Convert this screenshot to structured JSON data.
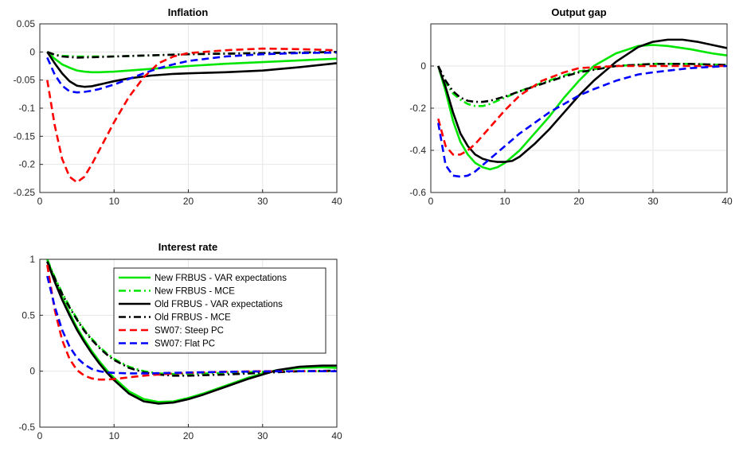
{
  "chart_data": [
    {
      "type": "line",
      "title": "Inflation",
      "xlabel": "",
      "ylabel": "",
      "xlim": [
        0,
        40
      ],
      "ylim": [
        -0.25,
        0.05
      ],
      "xticks": [
        "0",
        "10",
        "20",
        "30",
        "40"
      ],
      "yticks": [
        "0.05",
        "0",
        "-0.05",
        "-0.1",
        "-0.15",
        "-0.2",
        "-0.25"
      ],
      "grid": true,
      "series": [
        {
          "name": "New FRBUS - VAR expectations",
          "x": [
            1,
            2,
            3,
            4,
            5,
            6,
            7,
            8,
            10,
            12,
            15,
            18,
            20,
            25,
            30,
            35,
            40
          ],
          "y": [
            0,
            -0.012,
            -0.022,
            -0.028,
            -0.033,
            -0.035,
            -0.036,
            -0.036,
            -0.035,
            -0.033,
            -0.03,
            -0.027,
            -0.025,
            -0.021,
            -0.018,
            -0.015,
            -0.012
          ]
        },
        {
          "name": "New FRBUS - MCE",
          "x": [
            1,
            2,
            3,
            5,
            8,
            10,
            15,
            20,
            25,
            30,
            35,
            40
          ],
          "y": [
            0,
            -0.005,
            -0.007,
            -0.008,
            -0.008,
            -0.008,
            -0.006,
            -0.004,
            -0.003,
            -0.002,
            -0.001,
            0
          ]
        },
        {
          "name": "Old FRBUS - VAR expectations",
          "x": [
            1,
            2,
            3,
            4,
            5,
            6,
            7,
            8,
            10,
            12,
            15,
            18,
            20,
            25,
            30,
            35,
            40
          ],
          "y": [
            0,
            -0.02,
            -0.038,
            -0.052,
            -0.06,
            -0.062,
            -0.061,
            -0.058,
            -0.052,
            -0.047,
            -0.042,
            -0.039,
            -0.038,
            -0.036,
            -0.033,
            -0.027,
            -0.02
          ]
        },
        {
          "name": "Old FRBUS - MCE",
          "x": [
            1,
            2,
            3,
            5,
            8,
            10,
            15,
            20,
            25,
            30,
            35,
            40
          ],
          "y": [
            0,
            -0.005,
            -0.008,
            -0.01,
            -0.009,
            -0.008,
            -0.006,
            -0.004,
            -0.003,
            -0.002,
            -0.001,
            0
          ]
        },
        {
          "name": "SW07: Steep PC",
          "x": [
            1,
            2,
            3,
            4,
            5,
            6,
            7,
            8,
            10,
            12,
            14,
            16,
            18,
            20,
            25,
            30,
            35,
            40
          ],
          "y": [
            -0.05,
            -0.13,
            -0.19,
            -0.222,
            -0.232,
            -0.222,
            -0.2,
            -0.175,
            -0.125,
            -0.08,
            -0.045,
            -0.02,
            -0.008,
            -0.002,
            0.003,
            0.006,
            0.005,
            0.003
          ]
        },
        {
          "name": "SW07: Flat PC",
          "x": [
            1,
            2,
            3,
            4,
            5,
            6,
            7,
            8,
            10,
            12,
            14,
            16,
            18,
            20,
            25,
            30,
            35,
            40
          ],
          "y": [
            -0.01,
            -0.04,
            -0.06,
            -0.07,
            -0.072,
            -0.071,
            -0.069,
            -0.066,
            -0.058,
            -0.048,
            -0.038,
            -0.029,
            -0.022,
            -0.016,
            -0.008,
            -0.004,
            -0.002,
            -0.001
          ]
        }
      ]
    },
    {
      "type": "line",
      "title": "Output gap",
      "xlabel": "",
      "ylabel": "",
      "xlim": [
        0,
        40
      ],
      "ylim": [
        -0.6,
        0.2
      ],
      "xticks": [
        "0",
        "10",
        "20",
        "30",
        "40"
      ],
      "yticks": [
        "0",
        "-0.2",
        "-0.4",
        "-0.6"
      ],
      "grid": true,
      "series": [
        {
          "name": "New FRBUS - VAR expectations",
          "x": [
            1,
            2,
            3,
            4,
            5,
            6,
            7,
            8,
            9,
            10,
            12,
            14,
            16,
            18,
            20,
            22,
            25,
            28,
            30,
            32,
            35,
            38,
            40
          ],
          "y": [
            0,
            -0.12,
            -0.26,
            -0.36,
            -0.42,
            -0.46,
            -0.48,
            -0.49,
            -0.48,
            -0.46,
            -0.4,
            -0.32,
            -0.24,
            -0.15,
            -0.07,
            0,
            0.06,
            0.095,
            0.1,
            0.095,
            0.08,
            0.06,
            0.05
          ]
        },
        {
          "name": "New FRBUS - MCE",
          "x": [
            1,
            2,
            3,
            4,
            5,
            6,
            7,
            8,
            10,
            12,
            15,
            18,
            20,
            25,
            30,
            35,
            40
          ],
          "y": [
            0,
            -0.08,
            -0.13,
            -0.16,
            -0.18,
            -0.19,
            -0.19,
            -0.18,
            -0.15,
            -0.12,
            -0.08,
            -0.045,
            -0.025,
            0,
            0.01,
            0.01,
            0.005
          ]
        },
        {
          "name": "Old FRBUS - VAR expectations",
          "x": [
            1,
            2,
            3,
            4,
            5,
            6,
            7,
            8,
            9,
            10,
            11,
            12,
            14,
            16,
            18,
            20,
            22,
            25,
            28,
            30,
            32,
            34,
            36,
            38,
            40
          ],
          "y": [
            0,
            -0.1,
            -0.22,
            -0.32,
            -0.38,
            -0.42,
            -0.44,
            -0.45,
            -0.455,
            -0.455,
            -0.45,
            -0.43,
            -0.37,
            -0.3,
            -0.22,
            -0.14,
            -0.07,
            0.02,
            0.09,
            0.115,
            0.125,
            0.125,
            0.115,
            0.1,
            0.085
          ]
        },
        {
          "name": "Old FRBUS - MCE",
          "x": [
            1,
            2,
            3,
            4,
            5,
            6,
            7,
            8,
            10,
            12,
            15,
            18,
            20,
            25,
            30,
            35,
            40
          ],
          "y": [
            0,
            -0.07,
            -0.12,
            -0.15,
            -0.165,
            -0.17,
            -0.17,
            -0.165,
            -0.145,
            -0.12,
            -0.085,
            -0.05,
            -0.03,
            0,
            0.01,
            0.01,
            0.005
          ]
        },
        {
          "name": "SW07: Steep PC",
          "x": [
            1,
            2,
            3,
            4,
            5,
            6,
            7,
            8,
            10,
            12,
            15,
            18,
            20,
            25,
            30,
            35,
            40
          ],
          "y": [
            -0.25,
            -0.38,
            -0.42,
            -0.42,
            -0.4,
            -0.37,
            -0.33,
            -0.29,
            -0.21,
            -0.14,
            -0.07,
            -0.03,
            -0.01,
            0,
            0,
            0,
            0
          ]
        },
        {
          "name": "SW07: Flat PC",
          "x": [
            1,
            2,
            3,
            4,
            5,
            6,
            7,
            8,
            9,
            10,
            12,
            14,
            16,
            18,
            20,
            22,
            25,
            28,
            30,
            35,
            40
          ],
          "y": [
            -0.27,
            -0.47,
            -0.52,
            -0.525,
            -0.52,
            -0.5,
            -0.47,
            -0.44,
            -0.41,
            -0.38,
            -0.32,
            -0.27,
            -0.22,
            -0.18,
            -0.14,
            -0.11,
            -0.07,
            -0.04,
            -0.03,
            -0.01,
            0
          ]
        }
      ]
    },
    {
      "type": "line",
      "title": "Interest rate",
      "xlabel": "",
      "ylabel": "",
      "xlim": [
        0,
        40
      ],
      "ylim": [
        -0.5,
        1
      ],
      "xticks": [
        "0",
        "10",
        "20",
        "30",
        "40"
      ],
      "yticks": [
        "1",
        "0.5",
        "0",
        "-0.5"
      ],
      "grid": true,
      "legend": "top-right",
      "series": [
        {
          "name": "New FRBUS - VAR expectations",
          "x": [
            1,
            2,
            3,
            4,
            5,
            6,
            7,
            8,
            9,
            10,
            12,
            14,
            16,
            18,
            20,
            22,
            25,
            28,
            30,
            32,
            35,
            38,
            40
          ],
          "y": [
            1,
            0.82,
            0.66,
            0.52,
            0.39,
            0.28,
            0.18,
            0.09,
            0.01,
            -0.06,
            -0.18,
            -0.25,
            -0.275,
            -0.27,
            -0.24,
            -0.2,
            -0.13,
            -0.06,
            -0.02,
            0.01,
            0.03,
            0.035,
            0.03
          ]
        },
        {
          "name": "New FRBUS - MCE",
          "x": [
            1,
            2,
            3,
            4,
            5,
            6,
            7,
            8,
            9,
            10,
            12,
            14,
            16,
            18,
            20,
            25,
            30,
            35,
            40
          ],
          "y": [
            1,
            0.84,
            0.7,
            0.58,
            0.47,
            0.37,
            0.29,
            0.22,
            0.16,
            0.11,
            0.04,
            0,
            -0.02,
            -0.025,
            -0.025,
            -0.015,
            -0.005,
            0,
            0
          ]
        },
        {
          "name": "Old FRBUS - VAR expectations",
          "x": [
            1,
            2,
            3,
            4,
            5,
            6,
            7,
            8,
            9,
            10,
            12,
            14,
            16,
            18,
            20,
            22,
            25,
            28,
            30,
            32,
            35,
            38,
            40
          ],
          "y": [
            0.98,
            0.8,
            0.64,
            0.5,
            0.37,
            0.26,
            0.16,
            0.07,
            -0.01,
            -0.08,
            -0.2,
            -0.27,
            -0.29,
            -0.28,
            -0.25,
            -0.21,
            -0.14,
            -0.07,
            -0.03,
            0.01,
            0.04,
            0.05,
            0.05
          ]
        },
        {
          "name": "Old FRBUS - MCE",
          "x": [
            1,
            2,
            3,
            4,
            5,
            6,
            7,
            8,
            9,
            10,
            12,
            14,
            16,
            18,
            20,
            25,
            30,
            35,
            40
          ],
          "y": [
            0.98,
            0.83,
            0.69,
            0.57,
            0.46,
            0.36,
            0.28,
            0.21,
            0.15,
            0.1,
            0.03,
            -0.01,
            -0.03,
            -0.04,
            -0.04,
            -0.03,
            -0.015,
            0,
            0.005
          ]
        },
        {
          "name": "SW07: Steep PC",
          "x": [
            1,
            2,
            3,
            4,
            5,
            6,
            7,
            8,
            9,
            10,
            12,
            14,
            16,
            18,
            20,
            25,
            30,
            35,
            40
          ],
          "y": [
            0.95,
            0.55,
            0.28,
            0.11,
            0.01,
            -0.04,
            -0.065,
            -0.075,
            -0.075,
            -0.07,
            -0.055,
            -0.04,
            -0.03,
            -0.02,
            -0.015,
            -0.005,
            0,
            0,
            0
          ]
        },
        {
          "name": "SW07: Flat PC",
          "x": [
            1,
            2,
            3,
            4,
            5,
            6,
            7,
            8,
            9,
            10,
            12,
            14,
            16,
            18,
            20,
            25,
            30,
            35,
            40
          ],
          "y": [
            0.85,
            0.58,
            0.37,
            0.22,
            0.12,
            0.06,
            0.02,
            0,
            -0.01,
            -0.015,
            -0.02,
            -0.02,
            -0.018,
            -0.015,
            -0.012,
            -0.006,
            -0.002,
            0,
            0
          ]
        }
      ]
    }
  ],
  "series_styles": [
    {
      "color": "#00e600",
      "dash": "solid"
    },
    {
      "color": "#00e600",
      "dash": "dashdot"
    },
    {
      "color": "#000000",
      "dash": "solid"
    },
    {
      "color": "#000000",
      "dash": "dashdot"
    },
    {
      "color": "#ff0000",
      "dash": "dashed"
    },
    {
      "color": "#0000ff",
      "dash": "dashed"
    }
  ]
}
